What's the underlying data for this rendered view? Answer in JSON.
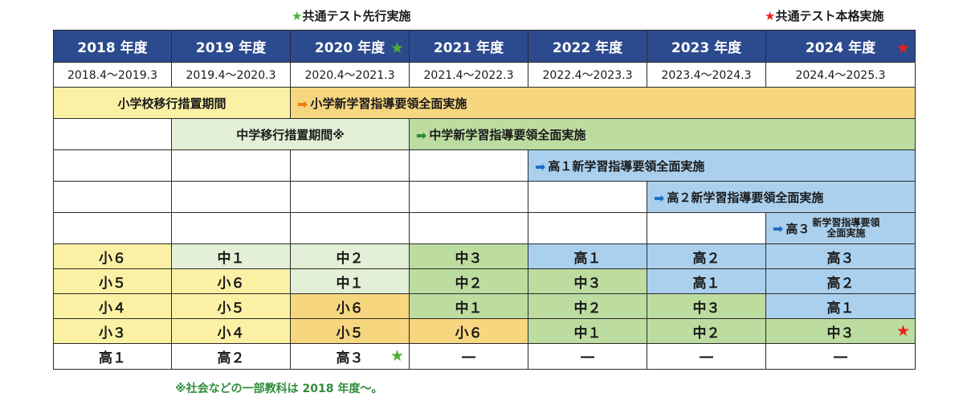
{
  "legend": {
    "green_label": "共通テスト先行実施",
    "red_label": "共通テスト本格実施",
    "star_glyph": "★",
    "green_color": "#4caf32",
    "red_color": "#e8201c"
  },
  "headers": {
    "y2018": "2018 年度",
    "y2019": "2019 年度",
    "y2020": "2020 年度",
    "y2021": "2021 年度",
    "y2022": "2022 年度",
    "y2023": "2023 年度",
    "y2024": "2024 年度"
  },
  "periods": {
    "y2018": "2018.4〜2019.3",
    "y2019": "2019.4〜2020.3",
    "y2020": "2020.4〜2021.3",
    "y2021": "2021.4〜2022.3",
    "y2022": "2022.4〜2023.3",
    "y2023": "2023.4〜2024.3",
    "y2024": "2024.4〜2025.3"
  },
  "policy": {
    "elem_transition": "小学校移行措置期間",
    "elem_full": "小学新学習指導要領全面実施",
    "middle_transition": "中学移行措置期間※",
    "middle_full": "中学新学習指導要領全面実施",
    "high1_full": "高１新学習指導要領全面実施",
    "high2_full": "高２新学習指導要領全面実施",
    "high3_prefix": "高３",
    "high3_line1": "新学習指導要領",
    "high3_line2": "全面実施"
  },
  "grades": [
    [
      "小６",
      "中１",
      "中２",
      "中３",
      "高１",
      "高２",
      "高３"
    ],
    [
      "小５",
      "小６",
      "中１",
      "中２",
      "中３",
      "高１",
      "高２"
    ],
    [
      "小４",
      "小５",
      "小６",
      "中１",
      "中２",
      "中３",
      "高１"
    ],
    [
      "小３",
      "小４",
      "小５",
      "小６",
      "中１",
      "中２",
      "中３"
    ],
    [
      "高１",
      "高２",
      "高３",
      "―",
      "―",
      "―",
      "―"
    ]
  ],
  "footnote": "※社会などの一部教科は 2018 年度〜。",
  "colors": {
    "header_bg": "#2c4a8e",
    "elementary": "#fbf1a4",
    "middle_transition": "#e3efd6",
    "middle": "#bcdca0",
    "elementary_6": "#f7d680",
    "high": "#aad0ee"
  }
}
